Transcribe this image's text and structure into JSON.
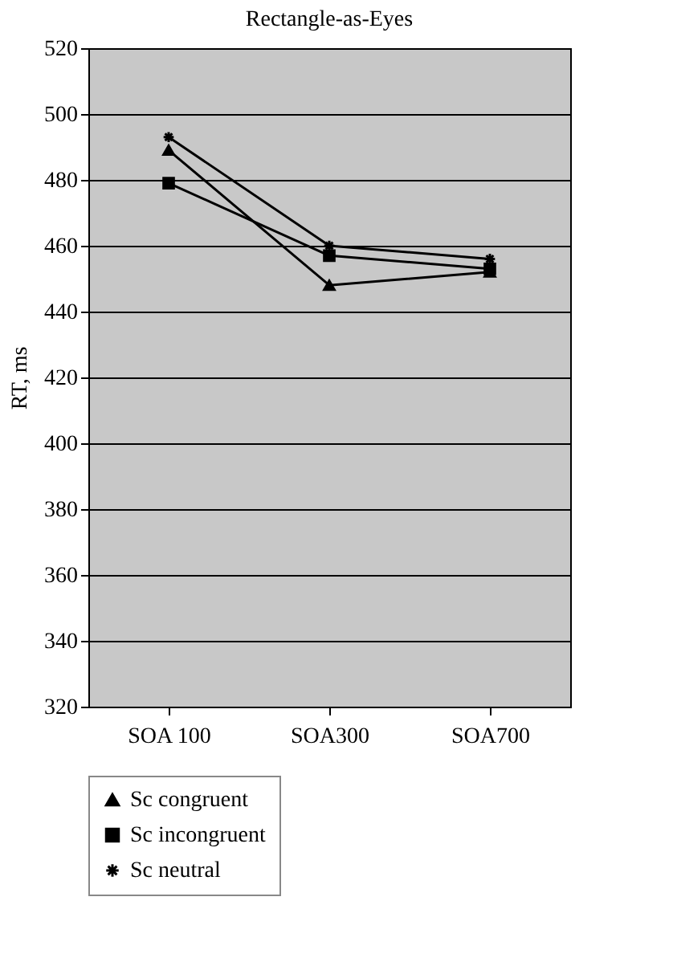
{
  "chart_data": {
    "type": "line",
    "title": "Rectangle-as-Eyes",
    "ylabel": "RT, ms",
    "categories": [
      "SOA 100",
      "SOA300",
      "SOA700"
    ],
    "series": [
      {
        "name": "Sc congruent",
        "color": "#000000",
        "marker": "triangle",
        "values": [
          489,
          448,
          452
        ]
      },
      {
        "name": "Sc incongruent",
        "color": "#000000",
        "marker": "square",
        "values": [
          479,
          457,
          453
        ]
      },
      {
        "name": "Sc neutral",
        "color": "#000000",
        "marker": "cross",
        "values": [
          493,
          460,
          456
        ]
      }
    ],
    "ylim": [
      320,
      520
    ],
    "yticks": [
      320,
      340,
      360,
      380,
      400,
      420,
      440,
      460,
      480,
      500,
      520
    ],
    "grid": "y",
    "legend": "bottom",
    "line_style": "solid"
  }
}
